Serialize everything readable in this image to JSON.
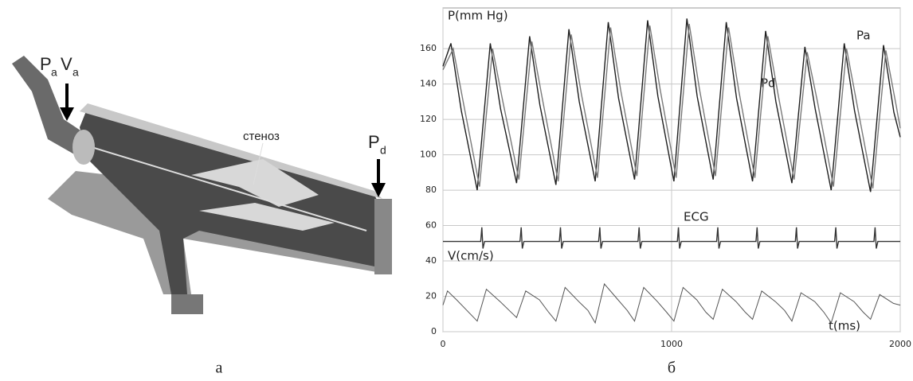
{
  "diagram": {
    "labels": {
      "pa": "P",
      "pa_sub": "a",
      "va": "V",
      "va_sub": "a",
      "pd": "P",
      "pd_sub": "d",
      "stenosis": "стеноз"
    },
    "caption": "а"
  },
  "chart_data": {
    "type": "line",
    "caption": "б",
    "y_label": "P(mm Hg)",
    "x_label": "t(ms)",
    "xlim": [
      0,
      2000
    ],
    "ylim": [
      0,
      183
    ],
    "xticks": [
      0,
      1000,
      2000
    ],
    "yticks": [
      0,
      20,
      40,
      60,
      80,
      100,
      120,
      140,
      160
    ],
    "grid": true,
    "series": [
      {
        "name": "Pa",
        "color": "#1e1e1e",
        "x": [
          0,
          35,
          80,
          150,
          207,
          252,
          322,
          379,
          424,
          494,
          551,
          596,
          666,
          723,
          768,
          838,
          895,
          940,
          1010,
          1067,
          1112,
          1182,
          1239,
          1284,
          1354,
          1411,
          1456,
          1526,
          1583,
          1628,
          1698,
          1755,
          1800,
          1870,
          1927,
          1972,
          2000
        ],
        "values": [
          150,
          163,
          125,
          80,
          163,
          126,
          84,
          167,
          128,
          83,
          171,
          130,
          85,
          175,
          132,
          86,
          176,
          133,
          85,
          177,
          133,
          86,
          175,
          132,
          85,
          170,
          130,
          84,
          161,
          126,
          80,
          163,
          125,
          79,
          162,
          124,
          110
        ]
      },
      {
        "name": "Pd",
        "color": "#7a7a7a",
        "x": [
          0,
          45,
          90,
          160,
          217,
          262,
          332,
          389,
          434,
          504,
          561,
          606,
          676,
          733,
          778,
          848,
          905,
          950,
          1020,
          1077,
          1122,
          1192,
          1249,
          1294,
          1364,
          1421,
          1466,
          1536,
          1593,
          1638,
          1708,
          1765,
          1810,
          1880,
          1937,
          1982,
          2000
        ],
        "values": [
          148,
          160,
          129,
          82,
          160,
          130,
          86,
          164,
          132,
          85,
          168,
          134,
          87,
          172,
          136,
          88,
          173,
          137,
          87,
          174,
          137,
          88,
          172,
          136,
          87,
          167,
          134,
          86,
          158,
          130,
          82,
          160,
          129,
          81,
          159,
          128,
          115
        ]
      },
      {
        "name": "ECG",
        "color": "#333333",
        "x": [
          0,
          165,
          170,
          175,
          182,
          337,
          342,
          347,
          354,
          509,
          514,
          519,
          526,
          681,
          686,
          691,
          698,
          853,
          858,
          863,
          870,
          1025,
          1030,
          1035,
          1042,
          1197,
          1202,
          1207,
          1214,
          1369,
          1374,
          1379,
          1386,
          1541,
          1546,
          1551,
          1558,
          1713,
          1718,
          1723,
          1730,
          1885,
          1890,
          1895,
          1902,
          2000
        ],
        "values": [
          51,
          51,
          59,
          47,
          51,
          51,
          59,
          47,
          51,
          51,
          59,
          47,
          51,
          51,
          59,
          47,
          51,
          51,
          59,
          47,
          51,
          51,
          59,
          47,
          51,
          51,
          59,
          47,
          51,
          51,
          59,
          47,
          51,
          51,
          59,
          47,
          51,
          51,
          59,
          47,
          51,
          51,
          59,
          47,
          51,
          51
        ]
      },
      {
        "name": "V(cm/s)",
        "color": "#555555",
        "x": [
          0,
          20,
          60,
          150,
          190,
          250,
          290,
          322,
          362,
          422,
          462,
          494,
          534,
          594,
          634,
          666,
          706,
          766,
          806,
          838,
          878,
          938,
          978,
          1010,
          1050,
          1110,
          1150,
          1182,
          1222,
          1282,
          1322,
          1354,
          1394,
          1454,
          1494,
          1526,
          1566,
          1626,
          1666,
          1698,
          1738,
          1798,
          1838,
          1870,
          1910,
          1970,
          2000
        ],
        "values": [
          15,
          23,
          18,
          6,
          24,
          17,
          12,
          8,
          23,
          18,
          11,
          6,
          25,
          17,
          12,
          5,
          27,
          18,
          12,
          6,
          25,
          17,
          11,
          6,
          25,
          18,
          11,
          7,
          24,
          17,
          11,
          7,
          23,
          17,
          12,
          6,
          22,
          17,
          11,
          5,
          22,
          17,
          11,
          7,
          21,
          16,
          15
        ]
      }
    ]
  }
}
